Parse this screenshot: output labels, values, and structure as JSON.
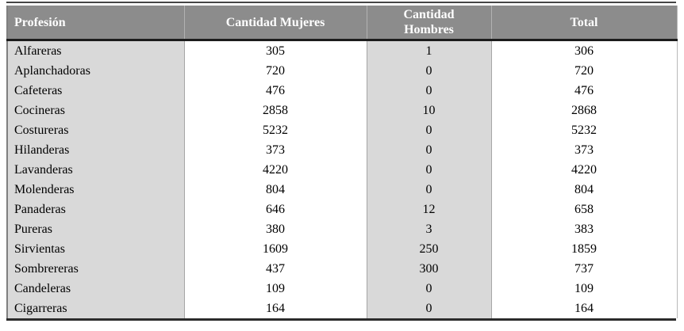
{
  "colors": {
    "header_background": "#8c8c8c",
    "header_text": "#ffffff",
    "shaded_column_background": "#d9d9d9",
    "body_text": "#000000",
    "top_rule": "#454545",
    "header_bottom_rule": "#1c1c1c",
    "bottom_rule": "#2b2b2b",
    "column_divider": "#a6a6a6"
  },
  "chart_data": {
    "type": "table",
    "columns": [
      "Profesión",
      "Cantidad Mujeres",
      "Cantidad Hombres",
      "Total"
    ],
    "rows": [
      [
        "Alfareras",
        305,
        1,
        306
      ],
      [
        "Aplanchadoras",
        720,
        0,
        720
      ],
      [
        "Cafeteras",
        476,
        0,
        476
      ],
      [
        "Cocineras",
        2858,
        10,
        2868
      ],
      [
        "Costureras",
        5232,
        0,
        5232
      ],
      [
        "Hilanderas",
        373,
        0,
        373
      ],
      [
        "Lavanderas",
        4220,
        0,
        4220
      ],
      [
        "Molenderas",
        804,
        0,
        804
      ],
      [
        "Panaderas",
        646,
        12,
        658
      ],
      [
        "Pureras",
        380,
        3,
        383
      ],
      [
        "Sirvientas",
        1609,
        250,
        1859
      ],
      [
        "Sombrereras",
        437,
        300,
        737
      ],
      [
        "Candeleras",
        109,
        0,
        109
      ],
      [
        "Cigarreras",
        164,
        0,
        164
      ]
    ]
  }
}
